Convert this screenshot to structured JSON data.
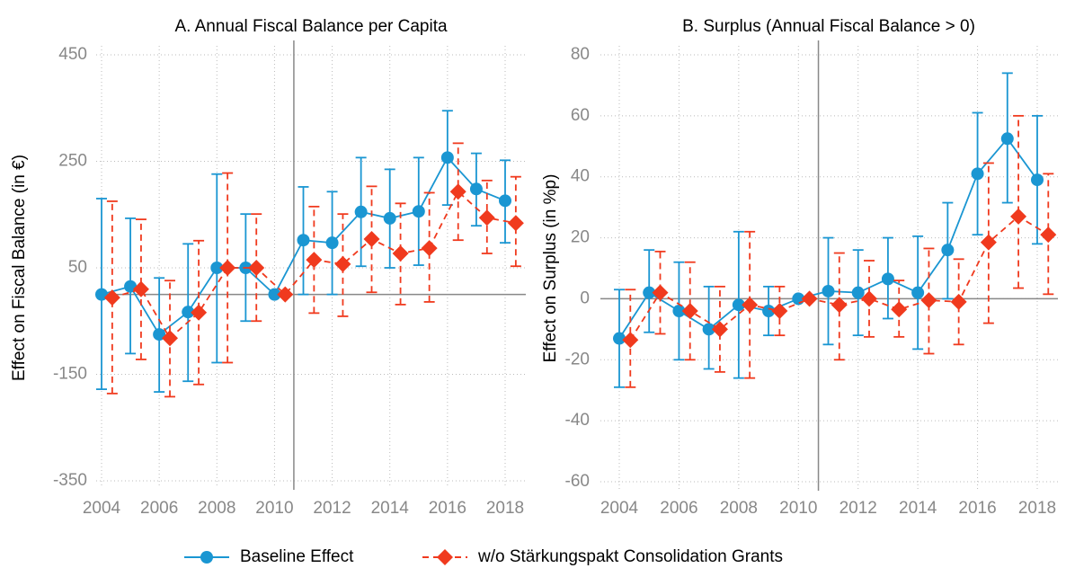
{
  "chart_data": [
    {
      "type": "errorbar-line",
      "title": "A. Annual Fiscal Balance per Capita",
      "y_label": "Effect on Fiscal Balance (in €)",
      "x": [
        2004,
        2005,
        2006,
        2007,
        2008,
        2009,
        2010,
        2011,
        2012,
        2013,
        2014,
        2015,
        2016,
        2017,
        2018
      ],
      "xlim": [
        2004,
        2018
      ],
      "xticks": [
        2004,
        2006,
        2008,
        2010,
        2012,
        2014,
        2016,
        2018
      ],
      "ylim": [
        -350,
        450
      ],
      "yticks": [
        -350,
        -150,
        50,
        250,
        450
      ],
      "grid": true,
      "vline": 2010.67,
      "hline": 0,
      "series": [
        {
          "name": "Baseline Effect",
          "color": "#1a96d2",
          "marker": "circle",
          "dash": false,
          "values": [
            0,
            15,
            -75,
            -33,
            50,
            50,
            0,
            102,
            97,
            155,
            143,
            156,
            257,
            198,
            176
          ],
          "lower": [
            -178,
            -111,
            -183,
            -163,
            -128,
            -50,
            null,
            0,
            0,
            53,
            50,
            55,
            168,
            129,
            97
          ],
          "upper": [
            180,
            143,
            31,
            95,
            226,
            151,
            null,
            202,
            193,
            257,
            235,
            257,
            345,
            265,
            252
          ]
        },
        {
          "name": "w/o Stärkungspakt Consolidation Grants",
          "color": "#f03a1e",
          "marker": "diamond",
          "dash": true,
          "values": [
            -6,
            10,
            -82,
            -34,
            50,
            50,
            0,
            65,
            57,
            104,
            77,
            87,
            193,
            144,
            134
          ],
          "lower": [
            -186,
            -122,
            -192,
            -169,
            -128,
            -50,
            null,
            -35,
            -41,
            4,
            -19,
            -14,
            102,
            77,
            53
          ],
          "upper": [
            175,
            141,
            26,
            101,
            228,
            151,
            null,
            165,
            151,
            203,
            171,
            191,
            284,
            214,
            221
          ]
        }
      ]
    },
    {
      "type": "errorbar-line",
      "title": "B. Surplus (Annual Fiscal Balance > 0)",
      "y_label": "Effect on Surplus (in %p)",
      "x": [
        2004,
        2005,
        2006,
        2007,
        2008,
        2009,
        2010,
        2011,
        2012,
        2013,
        2014,
        2015,
        2016,
        2017,
        2018
      ],
      "xlim": [
        2004,
        2018
      ],
      "xticks": [
        2004,
        2006,
        2008,
        2010,
        2012,
        2014,
        2016,
        2018
      ],
      "ylim": [
        -60,
        80
      ],
      "yticks": [
        -60,
        -40,
        -20,
        0,
        20,
        40,
        60,
        80
      ],
      "grid": true,
      "vline": 2010.67,
      "hline": 0,
      "series": [
        {
          "color": "#1a96d2",
          "marker": "circle",
          "dash": false,
          "values": [
            -13,
            2,
            -4,
            -10,
            -2,
            -4,
            0,
            2.5,
            2,
            6.5,
            2,
            16,
            41,
            52.5,
            39
          ],
          "lower": [
            -29,
            -11,
            -20,
            -23,
            -26,
            -12,
            null,
            -15,
            -12,
            -6.5,
            -16.5,
            0,
            21,
            31.5,
            18
          ],
          "upper": [
            3,
            16,
            12,
            4,
            22,
            4,
            null,
            20,
            16,
            20,
            20.5,
            31.5,
            61,
            74,
            60
          ]
        },
        {
          "color": "#f03a1e",
          "marker": "diamond",
          "dash": true,
          "values": [
            -13.5,
            2,
            -4,
            -10,
            -2,
            -4,
            0,
            -2,
            0,
            -3.5,
            -0.5,
            -1,
            18.5,
            27,
            21
          ],
          "lower": [
            -29,
            -11.5,
            -20,
            -24,
            -26,
            -12,
            null,
            -20,
            -12.5,
            -12.5,
            -18,
            -15,
            -8,
            3.5,
            1.5
          ],
          "upper": [
            3,
            15.5,
            12,
            4,
            22,
            4,
            null,
            15,
            12.5,
            6,
            16.5,
            13,
            44.5,
            60,
            41
          ]
        }
      ]
    }
  ]
}
